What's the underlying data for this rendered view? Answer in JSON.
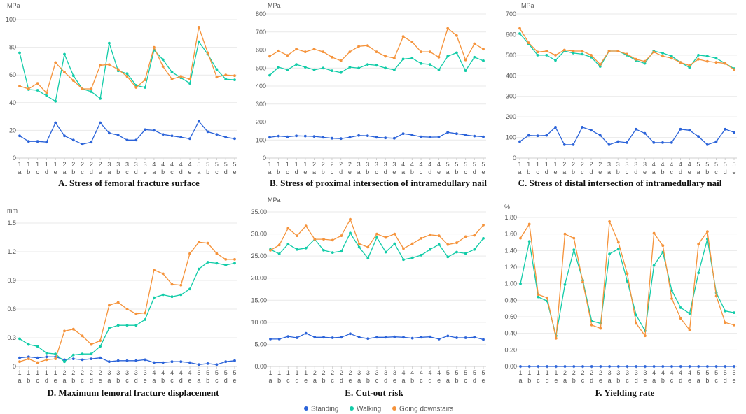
{
  "legend": [
    {
      "name": "Standing",
      "color": "#2B63D9"
    },
    {
      "name": "Walking",
      "color": "#12CCA8"
    },
    {
      "name": "Going downstairs",
      "color": "#F5933B"
    }
  ],
  "chart_data": [
    {
      "type": "line",
      "title": "A. Stress of femoral fracture surface",
      "ylabel": "MPa",
      "ylim": [
        0,
        100
      ],
      "yticks": [
        "0",
        "20",
        "40",
        "60",
        "80",
        "100"
      ],
      "x_top": [
        "1",
        "1",
        "1",
        "1",
        "1",
        "2",
        "2",
        "2",
        "2",
        "2",
        "3",
        "3",
        "3",
        "3",
        "3",
        "4",
        "4",
        "4",
        "4",
        "4",
        "5",
        "5",
        "5",
        "5",
        "5"
      ],
      "x_bottom": [
        "a",
        "b",
        "c",
        "d",
        "e",
        "a",
        "b",
        "c",
        "d",
        "e",
        "a",
        "b",
        "c",
        "d",
        "e",
        "a",
        "b",
        "c",
        "d",
        "e",
        "a",
        "b",
        "c",
        "d",
        "e"
      ],
      "series": [
        {
          "name": "Standing",
          "values": [
            16,
            12,
            12,
            11.5,
            25.5,
            16,
            13,
            10,
            11.5,
            25.5,
            18,
            16.5,
            13,
            13,
            20.5,
            20,
            17,
            16,
            15,
            14,
            26.5,
            19,
            17,
            15,
            14
          ]
        },
        {
          "name": "Walking",
          "values": [
            76,
            49.5,
            49,
            45,
            41,
            75,
            59.5,
            50,
            48,
            43,
            83,
            63,
            61,
            52.5,
            51,
            78,
            71,
            62,
            58,
            54,
            84,
            75,
            64,
            57,
            56.5
          ]
        },
        {
          "name": "Going downstairs",
          "values": [
            52,
            50,
            54,
            47,
            69,
            62,
            56,
            50,
            50,
            67,
            67.5,
            64,
            59,
            51,
            56.5,
            80,
            66,
            57,
            59,
            57,
            94.5,
            76,
            58.5,
            60,
            59.5
          ]
        }
      ]
    },
    {
      "type": "line",
      "title": "B. Stress of proximal intersection of intramedullary nail",
      "ylabel": "MPa",
      "ylim": [
        0,
        800
      ],
      "yticks": [
        "0",
        "100",
        "200",
        "300",
        "400",
        "500",
        "600",
        "700",
        "800"
      ],
      "x_top": [
        "1",
        "1",
        "1",
        "1",
        "1",
        "2",
        "2",
        "2",
        "2",
        "2",
        "3",
        "3",
        "3",
        "3",
        "3",
        "4",
        "4",
        "4",
        "4",
        "4",
        "5",
        "5",
        "5",
        "5",
        "5"
      ],
      "x_bottom": [
        "a",
        "b",
        "c",
        "d",
        "e",
        "a",
        "b",
        "c",
        "d",
        "e",
        "a",
        "b",
        "c",
        "d",
        "e",
        "a",
        "b",
        "c",
        "d",
        "e",
        "a",
        "b",
        "c",
        "d",
        "e"
      ],
      "series": [
        {
          "name": "Standing",
          "values": [
            115,
            122,
            118,
            123,
            122,
            120,
            115,
            110,
            108,
            115,
            125,
            124,
            115,
            112,
            110,
            135,
            128,
            118,
            116,
            117,
            143,
            135,
            128,
            122,
            118
          ]
        },
        {
          "name": "Walking",
          "values": [
            460,
            505,
            490,
            520,
            505,
            490,
            500,
            485,
            475,
            505,
            500,
            520,
            515,
            500,
            490,
            550,
            555,
            525,
            520,
            490,
            565,
            585,
            485,
            560,
            540
          ]
        },
        {
          "name": "Going downstairs",
          "values": [
            565,
            595,
            570,
            605,
            590,
            605,
            590,
            560,
            540,
            590,
            620,
            625,
            590,
            565,
            555,
            675,
            645,
            590,
            590,
            560,
            720,
            680,
            545,
            635,
            605
          ]
        }
      ]
    },
    {
      "type": "line",
      "title": "C. Stress of distal intersection of intramedullary nail",
      "ylabel": "MPa",
      "ylim": [
        0,
        700
      ],
      "yticks": [
        "0",
        "100",
        "200",
        "300",
        "400",
        "500",
        "600",
        "700"
      ],
      "x_top": [
        "1",
        "1",
        "1",
        "1",
        "1",
        "2",
        "2",
        "2",
        "2",
        "2",
        "3",
        "3",
        "3",
        "3",
        "3",
        "4",
        "4",
        "4",
        "4",
        "4",
        "5",
        "5",
        "5",
        "5",
        "5"
      ],
      "x_bottom": [
        "a",
        "b",
        "c",
        "d",
        "e",
        "a",
        "b",
        "c",
        "d",
        "e",
        "a",
        "b",
        "c",
        "d",
        "e",
        "a",
        "b",
        "c",
        "d",
        "e",
        "a",
        "b",
        "c",
        "d",
        "e"
      ],
      "series": [
        {
          "name": "Standing",
          "values": [
            80,
            110,
            108,
            110,
            150,
            65,
            65,
            150,
            135,
            110,
            65,
            80,
            75,
            140,
            120,
            75,
            75,
            75,
            140,
            135,
            105,
            65,
            80,
            140,
            125
          ]
        },
        {
          "name": "Walking",
          "values": [
            605,
            555,
            500,
            500,
            475,
            520,
            510,
            505,
            490,
            445,
            520,
            520,
            500,
            475,
            460,
            520,
            510,
            495,
            465,
            440,
            500,
            495,
            485,
            460,
            435
          ]
        },
        {
          "name": "Going downstairs",
          "values": [
            630,
            560,
            515,
            520,
            500,
            525,
            520,
            520,
            500,
            455,
            520,
            520,
            505,
            480,
            470,
            515,
            495,
            485,
            465,
            450,
            480,
            470,
            465,
            460,
            430
          ]
        }
      ]
    },
    {
      "type": "line",
      "title": "D. Maximum femoral fracture displacement",
      "ylabel": "mm",
      "ylim": [
        0,
        1.5
      ],
      "yticks": [
        "0",
        "0.3",
        "0.6",
        "0.9",
        "1.2",
        "1.5"
      ],
      "x_top": [
        "1",
        "1",
        "1",
        "1",
        "1",
        "2",
        "2",
        "2",
        "2",
        "2",
        "3",
        "3",
        "3",
        "3",
        "3",
        "4",
        "4",
        "4",
        "4",
        "4",
        "5",
        "5",
        "5",
        "5",
        "5"
      ],
      "x_bottom": [
        "a",
        "b",
        "c",
        "d",
        "e",
        "a",
        "b",
        "c",
        "d",
        "e",
        "a",
        "b",
        "c",
        "d",
        "e",
        "a",
        "b",
        "c",
        "d",
        "e",
        "a",
        "b",
        "c",
        "d",
        "e"
      ],
      "series": [
        {
          "name": "Standing",
          "values": [
            0.09,
            0.1,
            0.09,
            0.1,
            0.1,
            0.07,
            0.08,
            0.07,
            0.08,
            0.09,
            0.05,
            0.06,
            0.06,
            0.06,
            0.07,
            0.04,
            0.04,
            0.05,
            0.05,
            0.04,
            0.02,
            0.03,
            0.02,
            0.05,
            0.06
          ]
        },
        {
          "name": "Walking",
          "values": [
            0.29,
            0.23,
            0.21,
            0.14,
            0.13,
            0.05,
            0.12,
            0.13,
            0.13,
            0.21,
            0.4,
            0.43,
            0.43,
            0.43,
            0.49,
            0.72,
            0.75,
            0.73,
            0.75,
            0.81,
            1.02,
            1.09,
            1.08,
            1.06,
            1.08
          ]
        },
        {
          "name": "Going downstairs",
          "values": [
            0.05,
            0.08,
            0.04,
            0.07,
            0.08,
            0.37,
            0.39,
            0.32,
            0.23,
            0.27,
            0.64,
            0.67,
            0.6,
            0.55,
            0.56,
            1.01,
            0.97,
            0.86,
            0.85,
            1.18,
            1.3,
            1.29,
            1.18,
            1.12,
            1.12
          ]
        }
      ]
    },
    {
      "type": "line",
      "title": "E. Cut-out risk",
      "ylabel": "MPa",
      "ylim": [
        0,
        35
      ],
      "yticks": [
        "0.00",
        "5.00",
        "10.00",
        "15.00",
        "20.00",
        "25.00",
        "30.00",
        "35.00"
      ],
      "x_top": [
        "1",
        "1",
        "1",
        "1",
        "1",
        "2",
        "2",
        "2",
        "2",
        "2",
        "3",
        "3",
        "3",
        "3",
        "3",
        "4",
        "4",
        "4",
        "4",
        "4",
        "5",
        "5",
        "5",
        "5",
        "5"
      ],
      "x_bottom": [
        "a",
        "b",
        "c",
        "d",
        "e",
        "a",
        "b",
        "c",
        "d",
        "e",
        "a",
        "b",
        "c",
        "d",
        "e",
        "a",
        "b",
        "c",
        "d",
        "e",
        "a",
        "b",
        "c",
        "d",
        "e"
      ],
      "series": [
        {
          "name": "Standing",
          "values": [
            6.2,
            6.2,
            6.8,
            6.5,
            7.5,
            6.6,
            6.6,
            6.5,
            6.6,
            7.4,
            6.6,
            6.3,
            6.6,
            6.6,
            6.7,
            6.6,
            6.4,
            6.6,
            6.7,
            6.2,
            6.9,
            6.5,
            6.5,
            6.6,
            6.1
          ]
        },
        {
          "name": "Walking",
          "values": [
            26.5,
            25.5,
            27.7,
            26.5,
            26.8,
            28.8,
            26.3,
            25.8,
            26.1,
            30.2,
            27,
            24.5,
            29.2,
            25.9,
            27.8,
            24.2,
            24.6,
            25.2,
            26.5,
            27.6,
            24.8,
            25.9,
            25.6,
            26.5,
            29
          ]
        },
        {
          "name": "Going downstairs",
          "values": [
            26.3,
            27.5,
            31.3,
            29.6,
            31.8,
            28.8,
            28.8,
            28.6,
            29.6,
            33.3,
            27.8,
            27,
            30,
            29.2,
            30,
            26.7,
            27.8,
            29,
            29.8,
            29.6,
            27.6,
            28,
            29.4,
            29.7,
            32
          ]
        }
      ]
    },
    {
      "type": "line",
      "title": "F. Yielding rate",
      "ylabel": "%",
      "ylim": [
        0,
        1.8
      ],
      "yticks": [
        "0.00",
        "0.20",
        "0.40",
        "0.60",
        "0.80",
        "1.00",
        "1.20",
        "1.40",
        "1.60",
        "1.80"
      ],
      "x_top": [
        "1",
        "1",
        "1",
        "1",
        "1",
        "2",
        "2",
        "2",
        "2",
        "2",
        "3",
        "3",
        "3",
        "3",
        "3",
        "4",
        "4",
        "4",
        "4",
        "4",
        "5",
        "5",
        "5",
        "5",
        "5"
      ],
      "x_bottom": [
        "a",
        "b",
        "c",
        "d",
        "e",
        "a",
        "b",
        "c",
        "d",
        "e",
        "a",
        "b",
        "c",
        "d",
        "e",
        "a",
        "b",
        "c",
        "d",
        "e",
        "a",
        "b",
        "c",
        "d",
        "e"
      ],
      "series": [
        {
          "name": "Standing",
          "values": [
            0,
            0,
            0,
            0,
            0,
            0,
            0,
            0,
            0,
            0,
            0,
            0,
            0,
            0,
            0,
            0,
            0,
            0,
            0,
            0,
            0,
            0,
            0,
            0,
            0
          ]
        },
        {
          "name": "Walking",
          "values": [
            1,
            1.51,
            0.84,
            0.79,
            0.37,
            0.99,
            1.41,
            1.04,
            0.55,
            0.52,
            1.36,
            1.42,
            1.03,
            0.62,
            0.43,
            1.22,
            1.38,
            0.92,
            0.71,
            0.64,
            1.13,
            1.54,
            0.89,
            0.67,
            0.65
          ]
        },
        {
          "name": "Going downstairs",
          "values": [
            1.55,
            1.72,
            0.87,
            0.83,
            0.34,
            1.6,
            1.55,
            1.02,
            0.5,
            0.46,
            1.75,
            1.5,
            1.12,
            0.52,
            0.37,
            1.61,
            1.46,
            0.82,
            0.58,
            0.44,
            1.48,
            1.63,
            0.85,
            0.53,
            0.5
          ]
        }
      ]
    }
  ]
}
